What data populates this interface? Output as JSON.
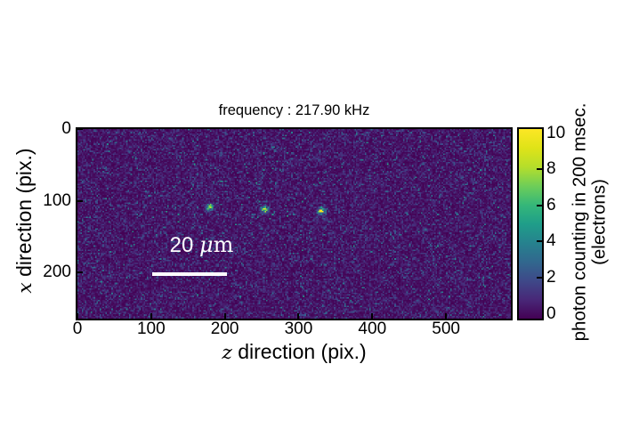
{
  "chart_data": {
    "type": "heatmap",
    "title": "frequency : 217.90 kHz",
    "xlabel_math": "z",
    "xlabel_text": " direction (pix.)",
    "ylabel_math": "x",
    "ylabel_text": " direction (pix.)",
    "x_ticks": [
      "0",
      "100",
      "200",
      "300",
      "400",
      "500"
    ],
    "x_tick_values": [
      0,
      100,
      200,
      300,
      400,
      500
    ],
    "y_ticks": [
      "0",
      "100",
      "200"
    ],
    "y_tick_values": [
      0,
      100,
      200
    ],
    "x_range": [
      0,
      588
    ],
    "y_range": [
      0,
      264
    ],
    "grid": false,
    "background_noise_mean_electrons": 0.7,
    "ion_spots": [
      {
        "z": 179,
        "x": 109,
        "peak": 8,
        "sigma": 3
      },
      {
        "z": 254,
        "x": 112,
        "peak": 8.5,
        "sigma": 3
      },
      {
        "z": 331,
        "x": 114,
        "peak": 9.5,
        "sigma": 3
      }
    ],
    "scalebar": {
      "label_num": "20",
      "label_mu": "μ",
      "label_unit": "m",
      "z_start": 102,
      "z_end": 203,
      "x_line": 202
    },
    "colorbar": {
      "label_line1": "photon counting in 200 msec.",
      "label_line2": "(electrons)",
      "ticks": [
        "0",
        "2",
        "4",
        "6",
        "8",
        "10"
      ],
      "tick_values": [
        0,
        2,
        4,
        6,
        8,
        10
      ],
      "range": [
        0,
        10
      ],
      "colormap": "viridis",
      "colormap_stops": [
        "#440154",
        "#482878",
        "#3e4989",
        "#31688e",
        "#26828e",
        "#1f9e89",
        "#35b779",
        "#6ece58",
        "#b5de2b",
        "#dfe318",
        "#fde725"
      ]
    }
  }
}
